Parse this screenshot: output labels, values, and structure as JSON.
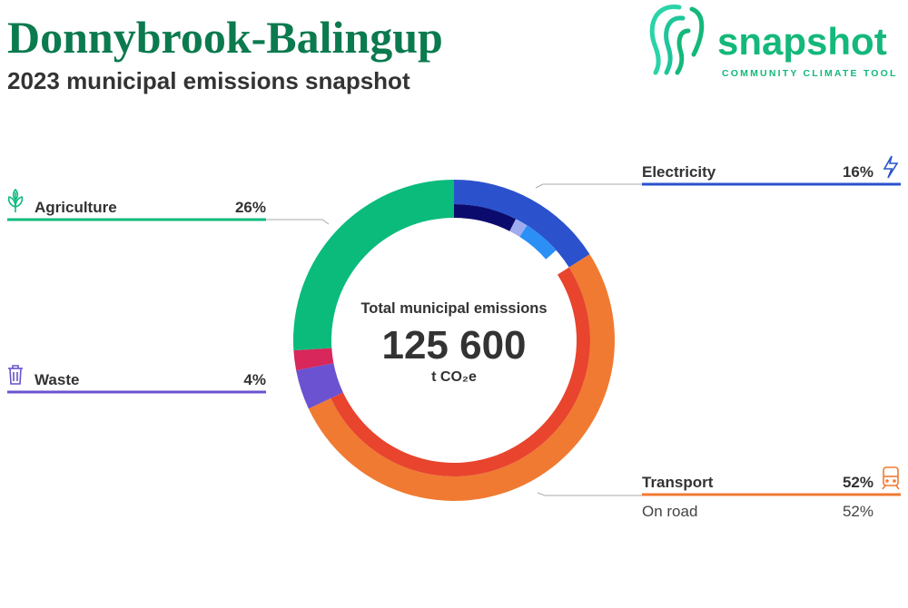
{
  "chart_data": {
    "type": "donut",
    "title": "Donnybrook-Balingup",
    "subtitle": "2023 municipal emissions snapshot",
    "logo": {
      "word": "snapshot",
      "tagline": "COMMUNITY CLIMATE TOOL"
    },
    "center_label": "Total municipal emissions",
    "total": {
      "value": 125600,
      "label": "125 600"
    },
    "unit": "t CO₂e",
    "categories": [
      "Electricity",
      "Transport",
      "Waste",
      null,
      "Agriculture"
    ],
    "values": [
      16,
      52,
      4,
      2,
      26
    ],
    "value_labels": [
      "16%",
      "52%",
      "4%",
      null,
      "26%"
    ],
    "colors": [
      "#2b52cc",
      "#f07a32",
      "#6b52d1",
      "#d8275a",
      "#0abb7c"
    ],
    "breakdown": [
      [
        {
          "value": 7.5,
          "color": "#0b0b6e"
        },
        {
          "value": 1.5,
          "color": "#9eabef"
        },
        {
          "value": 4.5,
          "color": "#2b8ff5"
        }
      ],
      [
        {
          "name": "On road",
          "value": 52,
          "value_label": "52%",
          "color": "#e8442e"
        }
      ],
      [],
      [],
      []
    ]
  }
}
